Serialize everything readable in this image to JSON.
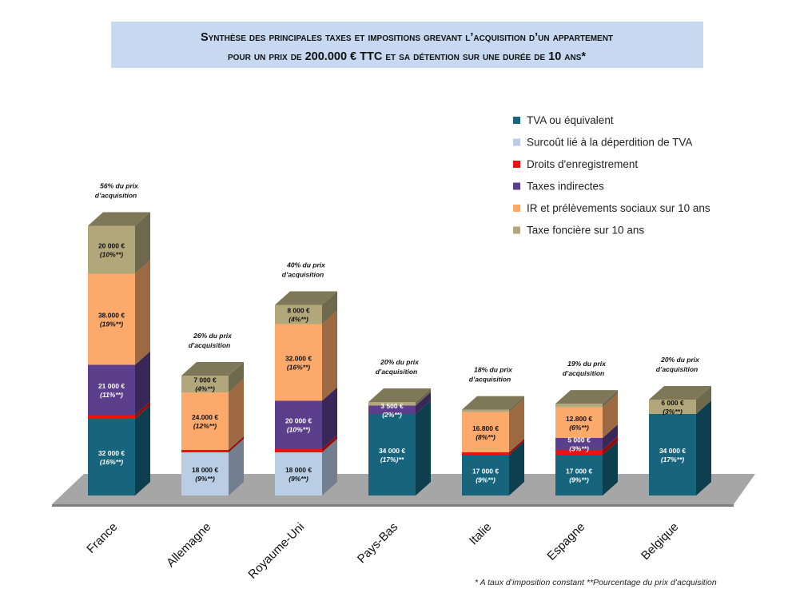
{
  "title": {
    "line1": "Synthèse des principales taxes et impositions grevant l’acquisition d’un appartement",
    "line2": "pour un prix de 200.000 € TTC et sa détention sur une durée de 10 ans*"
  },
  "footnote": "* A taux d’imposition constant **Pourcentage du prix d’acquisition",
  "chart_data": {
    "type": "bar",
    "stacked": true,
    "three_d": true,
    "categories": [
      "France",
      "Allemagne",
      "Royaume-Uni",
      "Pays-Bas",
      "Italie",
      "Espagne",
      "Belgique"
    ],
    "series": [
      {
        "name": "TVA ou équivalent",
        "color": "#17657d",
        "values": [
          32000,
          0,
          0,
          34000,
          17000,
          17000,
          34000
        ]
      },
      {
        "name": "Surcoût lié à la déperdition de TVA",
        "color": "#b9cde5",
        "values": [
          0,
          18000,
          18000,
          0,
          0,
          0,
          0
        ]
      },
      {
        "name": "Droits d'enregistrement",
        "color": "#ee1111",
        "values": [
          1500,
          1000,
          1500,
          0,
          1000,
          2000,
          0
        ]
      },
      {
        "name": "Taxes indirectes",
        "color": "#5b3f8c",
        "values": [
          21000,
          0,
          20000,
          3500,
          0,
          5000,
          0
        ]
      },
      {
        "name": "IR et prélèvements sociaux sur 10 ans",
        "color": "#fbaa6b",
        "values": [
          38000,
          24000,
          32000,
          0,
          16800,
          12800,
          0
        ]
      },
      {
        "name": "Taxe foncière sur 10 ans",
        "color": "#b1a77a",
        "values": [
          20000,
          7000,
          8000,
          1500,
          1000,
          1500,
          6000
        ]
      }
    ],
    "segment_labels": [
      [
        {
          "series": 0,
          "amount": "32 000 €",
          "pct": "(16%**)"
        },
        {
          "series": 3,
          "amount": "21 000 €",
          "pct": "(11%**)"
        },
        {
          "series": 4,
          "amount": "38.000 €",
          "pct": "(19%**)"
        },
        {
          "series": 5,
          "amount": "20 000 €",
          "pct": "(10%**)"
        }
      ],
      [
        {
          "series": 1,
          "amount": "18 000 €",
          "pct": "(9%**)"
        },
        {
          "series": 4,
          "amount": "24.000 €",
          "pct": "(12%**)"
        },
        {
          "series": 5,
          "amount": "7 000 €",
          "pct": "(4%**)"
        }
      ],
      [
        {
          "series": 1,
          "amount": "18 000 €",
          "pct": "(9%**)"
        },
        {
          "series": 3,
          "amount": "20 000 €",
          "pct": "(10%**)"
        },
        {
          "series": 4,
          "amount": "32.000 €",
          "pct": "(16%**)"
        },
        {
          "series": 5,
          "amount": "8 000 €",
          "pct": "(4%**)"
        }
      ],
      [
        {
          "series": 0,
          "amount": "34 000 €",
          "pct": "(17%)**"
        },
        {
          "series": 3,
          "amount": "3 500 €",
          "pct": "(2%**)"
        }
      ],
      [
        {
          "series": 0,
          "amount": "17 000 €",
          "pct": "(9%**)"
        },
        {
          "series": 4,
          "amount": "16.800 €",
          "pct": "(8%**)"
        }
      ],
      [
        {
          "series": 0,
          "amount": "17 000 €",
          "pct": "(9%**)"
        },
        {
          "series": 3,
          "amount": "5 000 €",
          "pct": "(3%**)"
        },
        {
          "series": 4,
          "amount": "12.800 €",
          "pct": "(6%**)"
        }
      ],
      [
        {
          "series": 0,
          "amount": "34 000 €",
          "pct": "(17%**)"
        },
        {
          "series": 5,
          "amount": "6 000 €",
          "pct": "(3%**)"
        }
      ]
    ],
    "total_annotations": [
      [
        "56% du prix",
        "d’acquisition"
      ],
      [
        "26% du prix",
        "d’acquisition"
      ],
      [
        "40% du prix",
        "d’acquisition"
      ],
      [
        "20% du prix",
        "d’acquisition"
      ],
      [
        "18% du prix",
        "d’acquisition"
      ],
      [
        "19% du prix",
        "d’acquisition"
      ],
      [
        "20% du prix",
        "d’acquisition"
      ]
    ],
    "legend_position": "top-right",
    "grid": false,
    "xlabel": "",
    "ylabel": ""
  }
}
